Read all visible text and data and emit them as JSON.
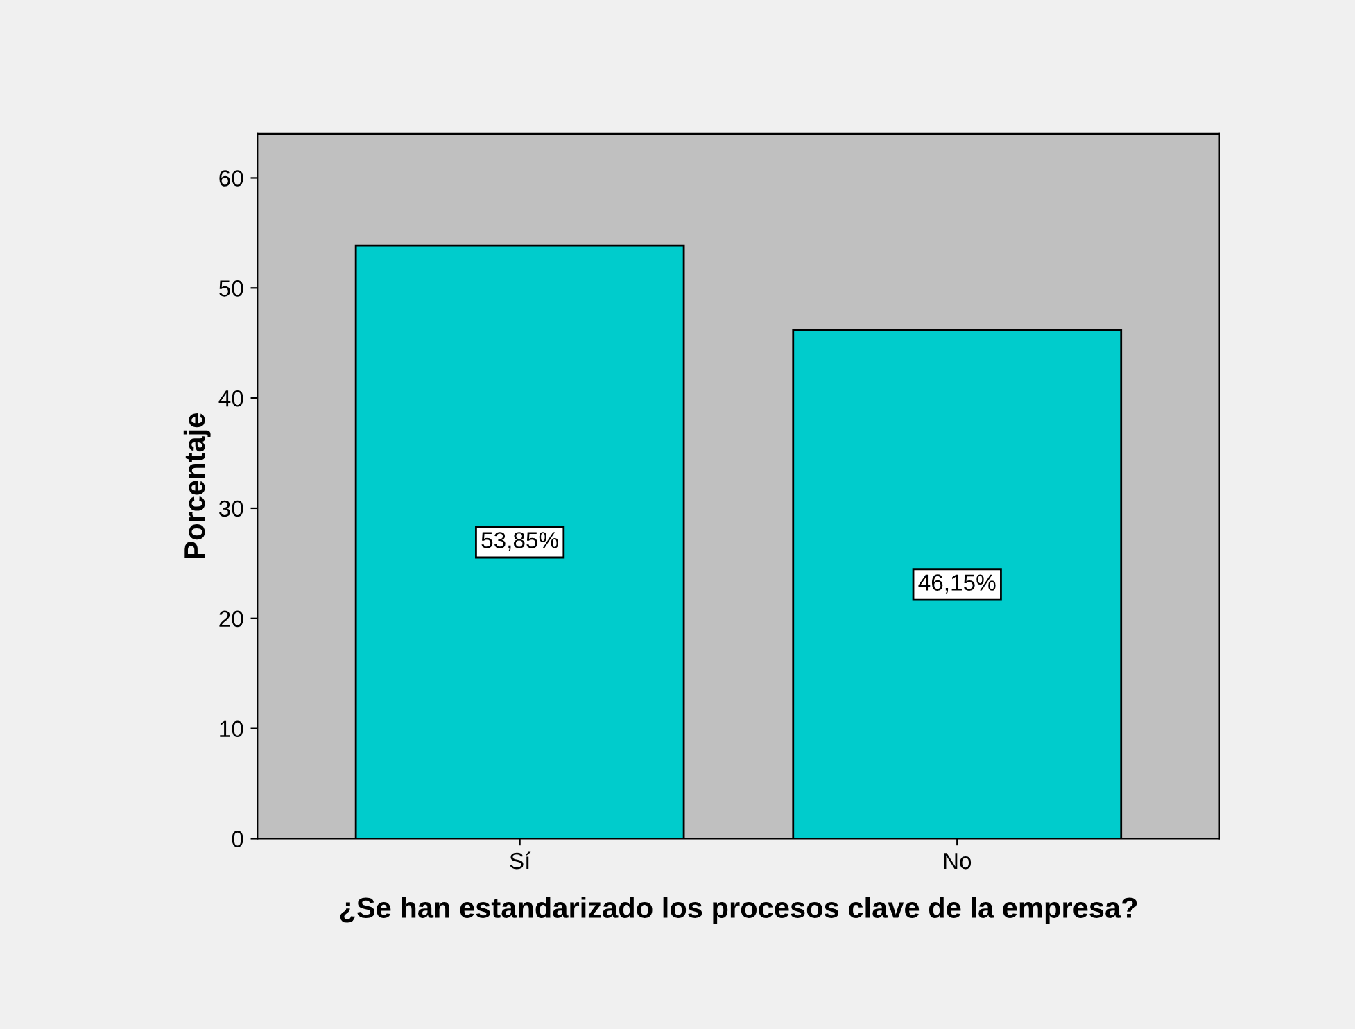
{
  "chart_data": {
    "type": "bar",
    "xlabel": "¿Se han estandarizado los procesos clave de la empresa?",
    "ylabel": "Porcentaje",
    "categories": [
      "Sí",
      "No"
    ],
    "values": [
      53.85,
      46.15
    ],
    "color": "#00cccc",
    "value_labels": [
      "53,85%",
      "46,15%"
    ],
    "ylim": [
      0,
      64
    ],
    "yticks": [
      0,
      10,
      20,
      30,
      40,
      50,
      60
    ],
    "grid": false,
    "legend": false
  }
}
